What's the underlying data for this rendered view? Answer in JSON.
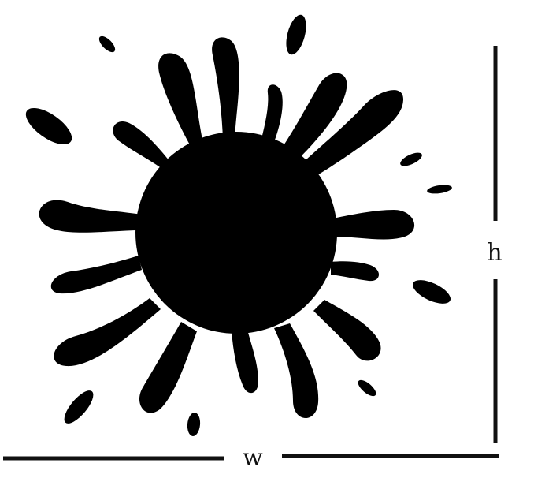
{
  "labels": {
    "width": "w",
    "height": "h"
  },
  "colors": {
    "ink": "#000000",
    "line": "#111111",
    "background": "#ffffff"
  }
}
